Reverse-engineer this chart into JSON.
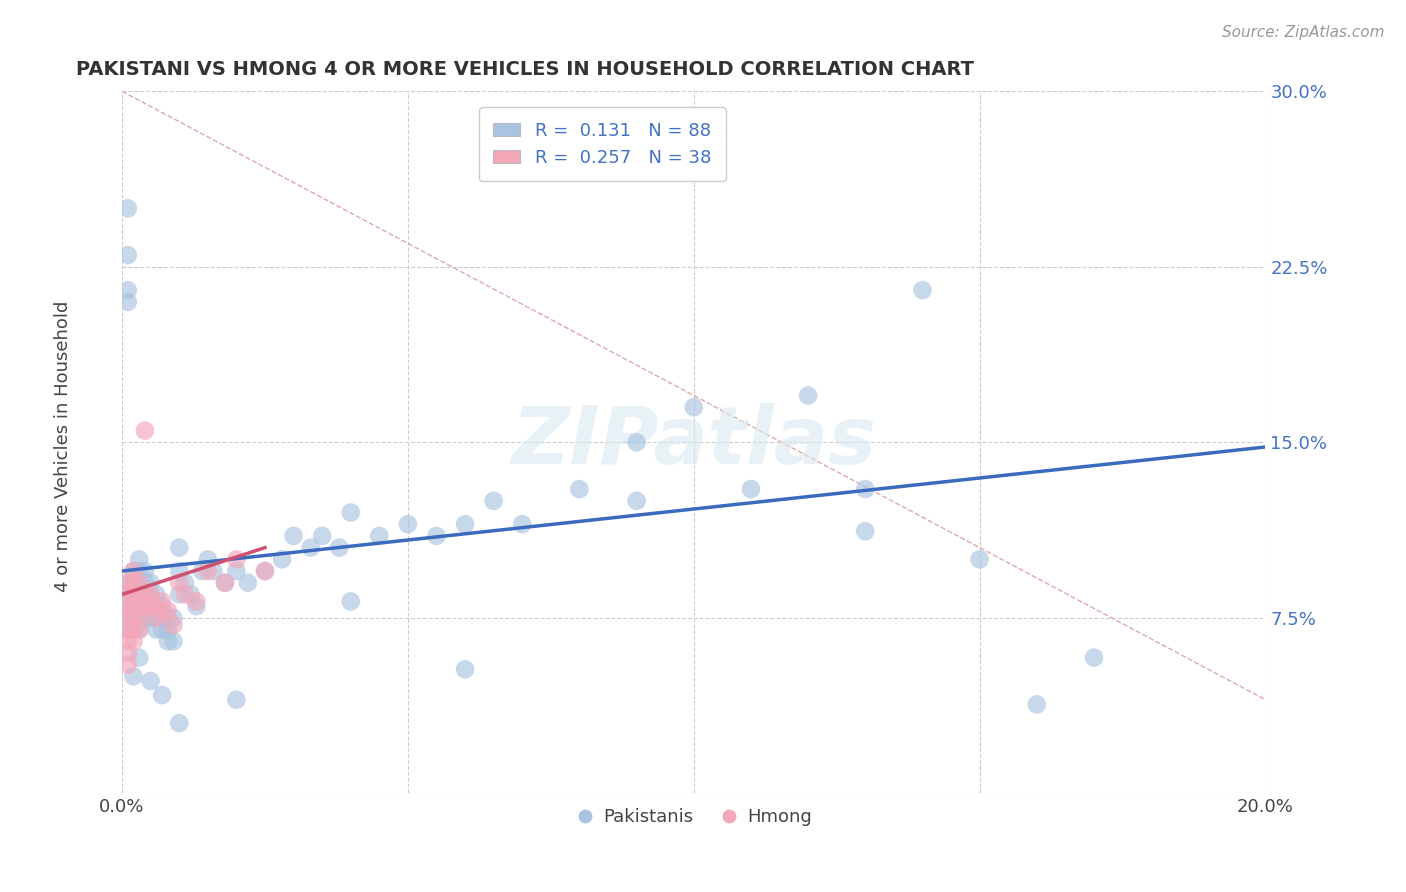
{
  "title": "PAKISTANI VS HMONG 4 OR MORE VEHICLES IN HOUSEHOLD CORRELATION CHART",
  "source": "Source: ZipAtlas.com",
  "ylabel_text": "4 or more Vehicles in Household",
  "watermark": "ZIPatlas",
  "xlim": [
    0.0,
    0.2
  ],
  "ylim": [
    0.0,
    0.3
  ],
  "xticks": [
    0.0,
    0.05,
    0.1,
    0.15,
    0.2
  ],
  "yticks": [
    0.0,
    0.075,
    0.15,
    0.225,
    0.3
  ],
  "pakistani_R": 0.131,
  "pakistani_N": 88,
  "hmong_R": 0.257,
  "hmong_N": 38,
  "pakistani_color": "#a8c4e0",
  "hmong_color": "#f4a7b9",
  "pakistani_line_color": "#3a6bbf",
  "hmong_line_color": "#d05070",
  "pak_line_x0": 0.0,
  "pak_line_y0": 0.095,
  "pak_line_x1": 0.2,
  "pak_line_y1": 0.148,
  "hmong_line_x0": 0.0,
  "hmong_line_y0": 0.085,
  "hmong_line_x1": 0.025,
  "hmong_line_y1": 0.105,
  "diag_line_color": "#ddaaaa",
  "grid_color": "#cccccc",
  "background_color": "#ffffff",
  "legend_pakistani_label": "Pakistanis",
  "legend_hmong_label": "Hmong",
  "pak_scatter_x": [
    0.001,
    0.001,
    0.001,
    0.001,
    0.001,
    0.002,
    0.002,
    0.002,
    0.002,
    0.002,
    0.002,
    0.003,
    0.003,
    0.003,
    0.003,
    0.003,
    0.003,
    0.003,
    0.004,
    0.004,
    0.004,
    0.004,
    0.004,
    0.005,
    0.005,
    0.005,
    0.005,
    0.006,
    0.006,
    0.006,
    0.006,
    0.007,
    0.007,
    0.007,
    0.008,
    0.008,
    0.008,
    0.009,
    0.009,
    0.01,
    0.01,
    0.01,
    0.011,
    0.012,
    0.013,
    0.014,
    0.015,
    0.016,
    0.018,
    0.02,
    0.022,
    0.025,
    0.028,
    0.03,
    0.033,
    0.035,
    0.038,
    0.04,
    0.045,
    0.05,
    0.055,
    0.06,
    0.065,
    0.07,
    0.08,
    0.09,
    0.1,
    0.11,
    0.12,
    0.13,
    0.14,
    0.15,
    0.16,
    0.17,
    0.13,
    0.09,
    0.06,
    0.04,
    0.02,
    0.01,
    0.007,
    0.005,
    0.003,
    0.002,
    0.001,
    0.001,
    0.001,
    0.001
  ],
  "pak_scatter_y": [
    0.09,
    0.085,
    0.08,
    0.075,
    0.07,
    0.095,
    0.09,
    0.085,
    0.08,
    0.075,
    0.07,
    0.1,
    0.095,
    0.09,
    0.085,
    0.08,
    0.075,
    0.07,
    0.095,
    0.09,
    0.085,
    0.08,
    0.075,
    0.09,
    0.085,
    0.08,
    0.075,
    0.085,
    0.08,
    0.075,
    0.07,
    0.08,
    0.075,
    0.07,
    0.075,
    0.07,
    0.065,
    0.075,
    0.065,
    0.105,
    0.095,
    0.085,
    0.09,
    0.085,
    0.08,
    0.095,
    0.1,
    0.095,
    0.09,
    0.095,
    0.09,
    0.095,
    0.1,
    0.11,
    0.105,
    0.11,
    0.105,
    0.12,
    0.11,
    0.115,
    0.11,
    0.115,
    0.125,
    0.115,
    0.13,
    0.125,
    0.165,
    0.13,
    0.17,
    0.13,
    0.215,
    0.1,
    0.038,
    0.058,
    0.112,
    0.15,
    0.053,
    0.082,
    0.04,
    0.03,
    0.042,
    0.048,
    0.058,
    0.05,
    0.23,
    0.25,
    0.215,
    0.21
  ],
  "hmong_scatter_x": [
    0.001,
    0.001,
    0.001,
    0.001,
    0.001,
    0.001,
    0.001,
    0.001,
    0.002,
    0.002,
    0.002,
    0.002,
    0.002,
    0.002,
    0.002,
    0.003,
    0.003,
    0.003,
    0.003,
    0.003,
    0.004,
    0.004,
    0.004,
    0.005,
    0.005,
    0.006,
    0.006,
    0.007,
    0.007,
    0.008,
    0.009,
    0.01,
    0.011,
    0.013,
    0.015,
    0.018,
    0.02,
    0.025
  ],
  "hmong_scatter_y": [
    0.09,
    0.085,
    0.08,
    0.075,
    0.07,
    0.065,
    0.06,
    0.055,
    0.095,
    0.09,
    0.085,
    0.08,
    0.075,
    0.07,
    0.065,
    0.09,
    0.085,
    0.08,
    0.075,
    0.07,
    0.085,
    0.08,
    0.155,
    0.085,
    0.08,
    0.08,
    0.075,
    0.082,
    0.077,
    0.078,
    0.072,
    0.09,
    0.085,
    0.082,
    0.095,
    0.09,
    0.1,
    0.095
  ]
}
